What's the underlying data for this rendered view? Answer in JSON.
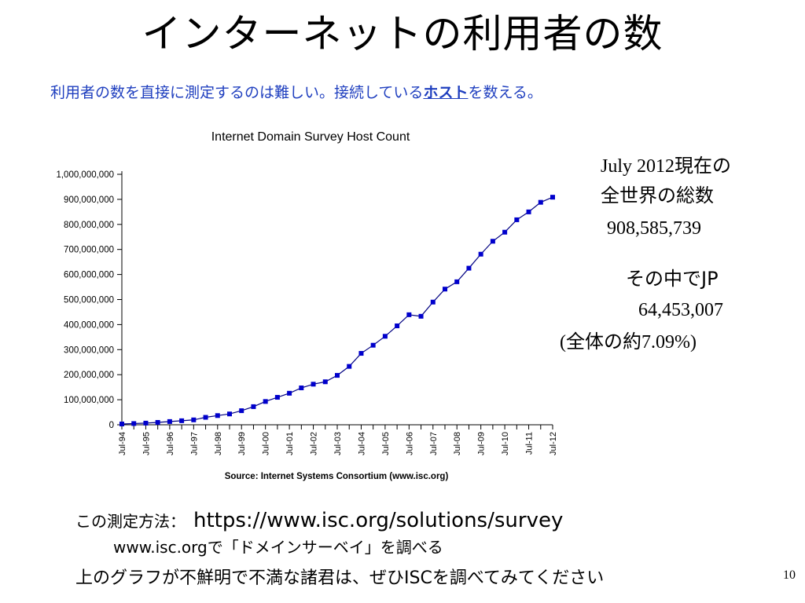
{
  "slide": {
    "title": "インターネットの利用者の数",
    "subtitle_before": "利用者の数を直接に測定するのは難しい。接続している",
    "subtitle_link": "ホスト",
    "subtitle_after": "を数える。",
    "page_number": "10"
  },
  "info": {
    "line1_date": "July 2012",
    "line1_suffix": "現在の",
    "line2": "全世界の総数",
    "total": "908,585,739",
    "jp_label": "その中でJP",
    "jp_count": "64,453,007",
    "jp_share_open": "(",
    "jp_share_label": "全体の約",
    "jp_share_value": "7.09",
    "jp_share_close": "%)"
  },
  "bottom": {
    "method_label": "この測定方法：",
    "method_url": "https://www.isc.org/solutions/survey",
    "line2": "www.isc.orgで「ドメインサーベイ」を調べる",
    "line3": "上のグラフが不鮮明で不満な諸君は、ぜひISCを調べてみてください"
  },
  "chart_data": {
    "type": "line",
    "title": "Internet Domain Survey Host Count",
    "source": "Source: Internet Systems Consortium (www.isc.org)",
    "ylim": [
      0,
      1000000000
    ],
    "yticks": [
      0,
      100000000,
      200000000,
      300000000,
      400000000,
      500000000,
      600000000,
      700000000,
      800000000,
      900000000,
      1000000000
    ],
    "ytick_labels": [
      "0",
      "100,000,000",
      "200,000,000",
      "300,000,000",
      "400,000,000",
      "500,000,000",
      "600,000,000",
      "700,000,000",
      "800,000,000",
      "900,000,000",
      "1,000,000,000"
    ],
    "xtick_labels": [
      "Jul-94",
      "Jul-95",
      "Jul-96",
      "Jul-97",
      "Jul-98",
      "Jul-99",
      "Jul-00",
      "Jul-01",
      "Jul-02",
      "Jul-03",
      "Jul-04",
      "Jul-05",
      "Jul-06",
      "Jul-07",
      "Jul-08",
      "Jul-09",
      "Jul-10",
      "Jul-11",
      "Jul-12"
    ],
    "marker_color": "#0000cc",
    "line_color": "#000080",
    "grid": false,
    "series": [
      {
        "x": [
          "Jul-94",
          "Jan-95",
          "Jul-95",
          "Jan-96",
          "Jul-96",
          "Jan-97",
          "Jul-97",
          "Jan-98",
          "Jul-98",
          "Jan-99",
          "Jul-99",
          "Jan-00",
          "Jul-00",
          "Jan-01",
          "Jul-01",
          "Jan-02",
          "Jul-02",
          "Jan-03",
          "Jul-03",
          "Jan-04",
          "Jul-04",
          "Jan-05",
          "Jul-05",
          "Jan-06",
          "Jul-06",
          "Jan-07",
          "Jul-07",
          "Jan-08",
          "Jul-08",
          "Jan-09",
          "Jul-09",
          "Jan-10",
          "Jul-10",
          "Jan-11",
          "Jul-11",
          "Jan-12",
          "Jul-12"
        ],
        "values": [
          3200000,
          4900000,
          6600000,
          9500000,
          12900000,
          16100000,
          19500000,
          29700000,
          36700000,
          43200000,
          56200000,
          72400000,
          93000000,
          109600000,
          125900000,
          147300000,
          162100000,
          171600000,
          197200000,
          233100000,
          285100000,
          317600000,
          353300000,
          394900000,
          439300000,
          433200000,
          489800000,
          541700000,
          570900000,
          625200000,
          681100000,
          732700000,
          768900000,
          818400000,
          849900000,
          888200000,
          908600000
        ]
      }
    ]
  }
}
